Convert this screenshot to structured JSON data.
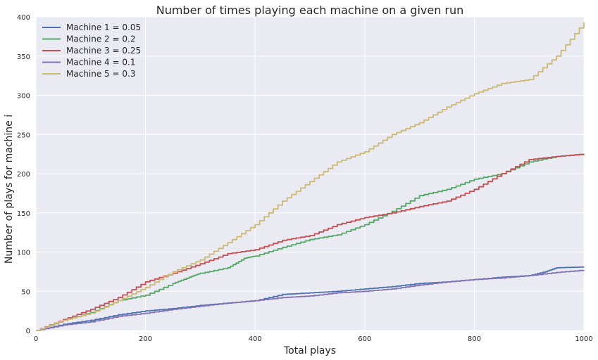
{
  "chart_data": {
    "type": "line",
    "title": "Number of times playing each machine on a given run",
    "xlabel": "Total plays",
    "ylabel": "Number of plays for machine i",
    "xlim": [
      0,
      1000
    ],
    "ylim": [
      0,
      400
    ],
    "xticks": [
      0,
      200,
      400,
      600,
      800,
      1000
    ],
    "yticks": [
      0,
      50,
      100,
      150,
      200,
      250,
      300,
      350,
      400
    ],
    "grid": true,
    "legend_position": "top-left",
    "background": "#EAEAF2",
    "series": [
      {
        "name": "Machine 1 = 0.05",
        "color": "#4C72B0",
        "x": [
          0,
          50,
          100,
          150,
          200,
          250,
          300,
          350,
          400,
          450,
          500,
          550,
          600,
          650,
          700,
          750,
          800,
          850,
          900,
          930,
          950,
          1000
        ],
        "y": [
          0,
          8,
          13,
          20,
          25,
          28,
          32,
          35,
          38,
          46,
          48,
          50,
          53,
          56,
          60,
          62,
          65,
          68,
          70,
          75,
          80,
          81
        ]
      },
      {
        "name": "Machine 2 = 0.2",
        "color": "#55A868",
        "x": [
          0,
          50,
          100,
          150,
          200,
          250,
          280,
          300,
          350,
          380,
          400,
          450,
          500,
          550,
          600,
          650,
          700,
          750,
          800,
          850,
          900,
          950,
          1000
        ],
        "y": [
          0,
          13,
          23,
          38,
          45,
          60,
          68,
          73,
          80,
          92,
          95,
          106,
          116,
          122,
          135,
          152,
          172,
          180,
          193,
          200,
          215,
          222,
          225
        ]
      },
      {
        "name": "Machine 3 = 0.25",
        "color": "#C44E52",
        "x": [
          0,
          50,
          100,
          150,
          200,
          250,
          300,
          350,
          400,
          450,
          500,
          550,
          600,
          650,
          700,
          750,
          800,
          850,
          900,
          950,
          1000
        ],
        "y": [
          0,
          14,
          27,
          42,
          62,
          73,
          85,
          98,
          103,
          115,
          121,
          135,
          144,
          150,
          158,
          165,
          180,
          200,
          218,
          222,
          225
        ]
      },
      {
        "name": "Machine 4 = 0.1",
        "color": "#8172B2",
        "x": [
          0,
          50,
          100,
          150,
          200,
          250,
          300,
          350,
          400,
          450,
          500,
          550,
          600,
          650,
          700,
          750,
          800,
          850,
          900,
          950,
          1000
        ],
        "y": [
          0,
          7,
          11,
          18,
          22,
          27,
          31,
          35,
          38,
          42,
          44,
          48,
          50,
          53,
          58,
          62,
          65,
          67,
          70,
          74,
          77
        ]
      },
      {
        "name": "Machine 5 = 0.3",
        "color": "#CCB974",
        "x": [
          0,
          50,
          100,
          150,
          200,
          250,
          300,
          350,
          400,
          450,
          500,
          550,
          600,
          650,
          700,
          750,
          800,
          850,
          900,
          950,
          1000
        ],
        "y": [
          0,
          13,
          22,
          38,
          55,
          75,
          90,
          112,
          135,
          165,
          190,
          215,
          228,
          250,
          265,
          285,
          302,
          315,
          320,
          350,
          393
        ]
      }
    ]
  }
}
